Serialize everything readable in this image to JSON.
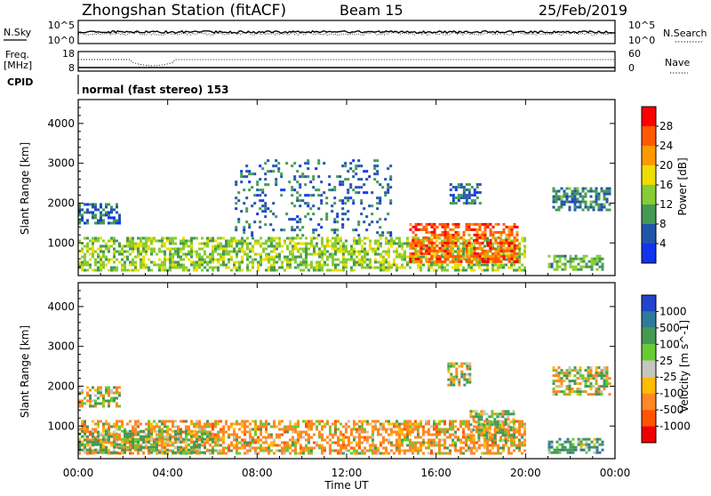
{
  "header": {
    "station": "Zhongshan Station (fitACF)",
    "beam": "Beam 15",
    "date": "25/Feb/2019"
  },
  "top_panels": {
    "nsky_label": "N.Sky",
    "nsky_ticks": [
      "10^5",
      "10^0"
    ],
    "nsearch_label": "N.Search",
    "freq_label_1": "Freq.",
    "freq_label_2": "[MHz]",
    "freq_ticks": [
      "18",
      "8"
    ],
    "nave_ticks": [
      "60",
      "0"
    ],
    "nave_label": "Nave",
    "cpid_label": "CPID",
    "cpid_text": "normal (fast stereo) 153"
  },
  "power_panel": {
    "ylabel": "Slant Range [km]",
    "cbar_label": "Power [dB]",
    "cbar_ticks": [
      "28",
      "24",
      "20",
      "16",
      "12",
      "8",
      "4"
    ],
    "cbar_colors": [
      "#ff0000",
      "#ff5a00",
      "#ff9900",
      "#eedd00",
      "#88cc33",
      "#449955",
      "#2255aa",
      "#1133ee"
    ]
  },
  "velocity_panel": {
    "ylabel": "Slant Range [km]",
    "cbar_label": "Velocity [m s^-1]",
    "cbar_ticks": [
      "1000",
      "500",
      "100",
      "25",
      "-25",
      "-100",
      "-500",
      "-1000"
    ],
    "cbar_colors": [
      "#2244cc",
      "#2f7a9a",
      "#449955",
      "#66cc33",
      "#c6c6be",
      "#ffbb00",
      "#ff8822",
      "#ff5500",
      "#ee0000"
    ]
  },
  "x_axis": {
    "label": "Time UT",
    "ticks": [
      "00:00",
      "04:00",
      "08:00",
      "12:00",
      "16:00",
      "20:00",
      "00:00"
    ]
  },
  "chart_data": [
    {
      "type": "heatmap",
      "title": "Power [dB]",
      "xlabel": "Time UT",
      "ylabel": "Slant Range [km]",
      "xlim": [
        0,
        24
      ],
      "ylim": [
        180,
        4600
      ],
      "y_ticks": [
        1000,
        2000,
        3000,
        4000
      ],
      "color_scale": [
        4,
        8,
        12,
        16,
        20,
        24,
        28
      ],
      "regions": [
        {
          "t0": 0.0,
          "t1": 20.0,
          "r0": 300,
          "r1": 1150,
          "value": 14
        },
        {
          "t0": 14.8,
          "t1": 19.6,
          "r0": 500,
          "r1": 1500,
          "value": 26
        },
        {
          "t0": 0.0,
          "t1": 1.8,
          "r0": 1500,
          "r1": 2000,
          "value": 7
        },
        {
          "t0": 21.2,
          "t1": 23.8,
          "r0": 1800,
          "r1": 2400,
          "value": 8
        },
        {
          "t0": 16.6,
          "t1": 18.0,
          "r0": 2000,
          "r1": 2500,
          "value": 7
        },
        {
          "t0": 7.0,
          "t1": 14.0,
          "r0": 1200,
          "r1": 3100,
          "value": 7
        },
        {
          "t0": 21.0,
          "t1": 23.5,
          "r0": 300,
          "r1": 700,
          "value": 12
        }
      ]
    },
    {
      "type": "heatmap",
      "title": "Velocity [m s^-1]",
      "xlabel": "Time UT",
      "ylabel": "Slant Range [km]",
      "xlim": [
        0,
        24
      ],
      "ylim": [
        180,
        4600
      ],
      "y_ticks": [
        1000,
        2000,
        3000,
        4000
      ],
      "color_scale": [
        -1000,
        -500,
        -100,
        -25,
        25,
        100,
        500,
        1000
      ],
      "regions": [
        {
          "t0": 0.0,
          "t1": 20.0,
          "r0": 300,
          "r1": 1150,
          "value": -200
        },
        {
          "t0": 0.0,
          "t1": 6.0,
          "r0": 300,
          "r1": 900,
          "value": 150
        },
        {
          "t0": 0.0,
          "t1": 1.8,
          "r0": 1500,
          "r1": 2000,
          "value": 0
        },
        {
          "t0": 21.2,
          "t1": 23.8,
          "r0": 1800,
          "r1": 2500,
          "value": 0
        },
        {
          "t0": 16.5,
          "t1": 17.5,
          "r0": 2000,
          "r1": 2600,
          "value": 0
        },
        {
          "t0": 17.5,
          "t1": 19.5,
          "r0": 600,
          "r1": 1400,
          "value": 100
        },
        {
          "t0": 21.0,
          "t1": 23.5,
          "r0": 300,
          "r1": 700,
          "value": 300
        }
      ]
    }
  ]
}
